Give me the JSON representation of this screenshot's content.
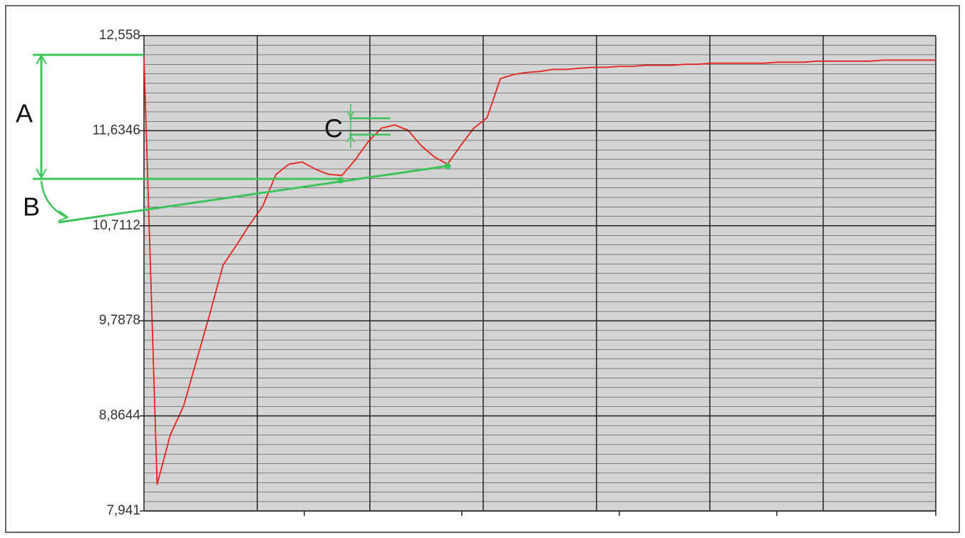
{
  "chart_data": {
    "type": "line",
    "color": "#e8221e",
    "values": [
      12.35,
      8.2,
      8.68,
      8.96,
      9.41,
      9.86,
      10.33,
      10.52,
      10.72,
      10.9,
      11.21,
      11.31,
      11.33,
      11.26,
      11.21,
      11.2,
      11.35,
      11.53,
      11.66,
      11.69,
      11.64,
      11.49,
      11.38,
      11.31,
      11.49,
      11.66,
      11.76,
      12.14,
      12.18,
      12.2,
      12.21,
      12.23,
      12.23,
      12.24,
      12.25,
      12.25,
      12.26,
      12.26,
      12.27,
      12.27,
      12.27,
      12.28,
      12.28,
      12.29,
      12.29,
      12.29,
      12.29,
      12.29,
      12.3,
      12.3,
      12.3,
      12.31,
      12.31,
      12.31,
      12.31,
      12.31,
      12.32,
      12.32,
      12.32,
      12.32,
      12.32
    ],
    "ylim": [
      7.941,
      12.558
    ],
    "yticks": [
      {
        "value": 12.558,
        "label": "12,558"
      },
      {
        "value": 11.6346,
        "label": "11,6346"
      },
      {
        "value": 10.7112,
        "label": "10,7112"
      },
      {
        "value": 9.7878,
        "label": "9,7878"
      },
      {
        "value": 8.8644,
        "label": "8,8644"
      },
      {
        "value": 7.941,
        "label": "7,941"
      }
    ],
    "grid": true,
    "annotations": [
      "A",
      "B",
      "C"
    ]
  }
}
